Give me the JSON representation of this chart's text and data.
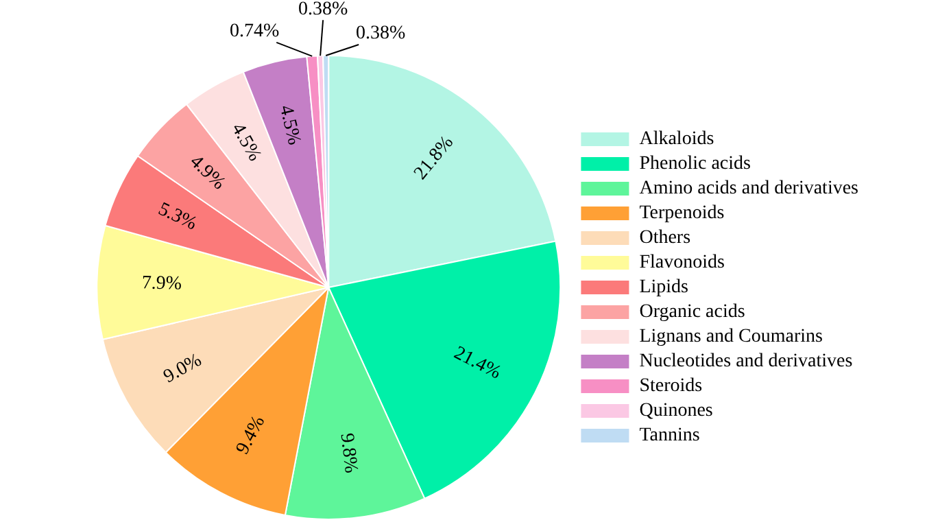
{
  "chart_data": {
    "type": "pie",
    "categories": [
      "Alkaloids",
      "Phenolic acids",
      "Amino acids and derivatives",
      "Terpenoids",
      "Others",
      "Flavonoids",
      "Lipids",
      "Organic acids",
      "Lignans and Coumarins",
      "Nucleotides and derivatives",
      "Steroids",
      "Quinones",
      "Tannins"
    ],
    "values": [
      21.8,
      21.4,
      9.8,
      9.4,
      9.0,
      7.9,
      5.3,
      4.9,
      4.5,
      4.5,
      0.74,
      0.38,
      0.38
    ],
    "colors": [
      "#b3f5e4",
      "#00f0a8",
      "#5ef59a",
      "#ffa035",
      "#fddcb8",
      "#fffb99",
      "#fb7a7a",
      "#fca3a3",
      "#fde0e0",
      "#c47fc6",
      "#f78fc4",
      "#fbc8e4",
      "#bfdcf3"
    ],
    "value_labels": [
      "21.8%",
      "21.4%",
      "9.8%",
      "9.4%",
      "9.0%",
      "7.9%",
      "5.3%",
      "4.9%",
      "4.5%",
      "4.5%",
      "0.74%",
      "0.38%",
      "0.38%"
    ],
    "legend": "right"
  }
}
